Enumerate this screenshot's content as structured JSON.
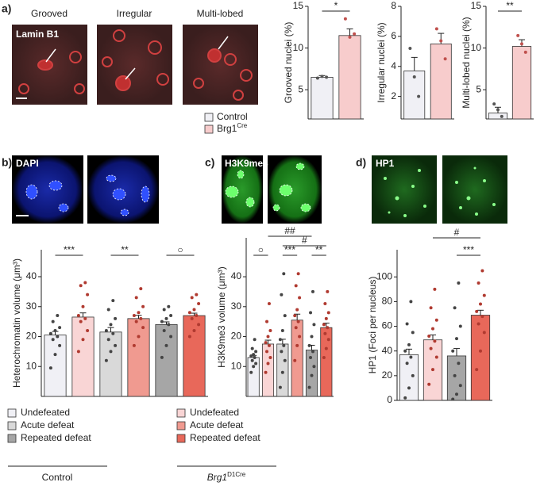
{
  "panels": [
    "a)",
    "b)",
    "c)",
    "d)"
  ],
  "images": {
    "a": {
      "stain": "Lamin B1",
      "labels": [
        "Grooved",
        "Irregular",
        "Multi-lobed"
      ]
    },
    "b": {
      "stain": "DAPI"
    },
    "c": {
      "stain": "H3K9me3"
    },
    "d": {
      "stain": "HP1"
    }
  },
  "legend_top": [
    {
      "label": "Control",
      "color": "#f0f0f5"
    },
    {
      "label": "Brg1",
      "sup": "Cre",
      "color": "#f7cccc"
    }
  ],
  "legend_bottom": [
    {
      "name": "Control",
      "items": [
        {
          "label": "Undefeated",
          "color": "#f0f0f5"
        },
        {
          "label": "Acute defeat",
          "color": "#d9d9d9"
        },
        {
          "label": "Repeated defeat",
          "color": "#a6a6a6"
        }
      ]
    },
    {
      "name": "Brg1",
      "sup": "D1Cre",
      "items": [
        {
          "label": "Undefeated",
          "color": "#f9d5d5"
        },
        {
          "label": "Acute defeat",
          "color": "#f09a90"
        },
        {
          "label": "Repeated defeat",
          "color": "#e8685a"
        }
      ]
    }
  ],
  "chart_data": [
    {
      "type": "bar",
      "ylabel": "Grooved nuclei (%)",
      "ylim": [
        1.5,
        15
      ],
      "yticks": [
        5,
        10,
        15
      ],
      "values": [
        6.5,
        11.5
      ],
      "errors": [
        0.2,
        0.8
      ],
      "colors": [
        "#f0f0f5",
        "#f7cccc"
      ],
      "point_colors": [
        "#555555",
        "#c0504d"
      ],
      "points": [
        [
          6.4,
          6.6,
          6.5
        ],
        [
          13.5,
          11.3,
          11.7
        ]
      ],
      "annotations": [
        "*"
      ]
    },
    {
      "type": "bar",
      "ylabel": "Irregular nuclei (%)",
      "ylim": [
        0.5,
        8
      ],
      "yticks": [
        2,
        4,
        6,
        8
      ],
      "values": [
        3.7,
        5.5
      ],
      "errors": [
        0.9,
        0.7
      ],
      "colors": [
        "#f0f0f5",
        "#f7cccc"
      ],
      "point_colors": [
        "#555555",
        "#c0504d"
      ],
      "points": [
        [
          5.2,
          3.3,
          2.0
        ],
        [
          6.5,
          5.7,
          4.5
        ]
      ],
      "annotations": []
    },
    {
      "type": "bar",
      "ylabel": "Multi-lobed nuclei (%)",
      "ylim": [
        1.5,
        15
      ],
      "yticks": [
        5,
        10,
        15
      ],
      "values": [
        2.2,
        10.2
      ],
      "errors": [
        0.7,
        0.8
      ],
      "colors": [
        "#f0f0f5",
        "#f7cccc"
      ],
      "point_colors": [
        "#555555",
        "#c0504d"
      ],
      "points": [
        [
          3.3,
          2.6,
          1.8
        ],
        [
          11.5,
          10.5,
          9.5
        ]
      ],
      "annotations": [
        "**"
      ]
    },
    {
      "type": "bar",
      "ylabel": "Heterochromatin volume (μm³)",
      "ylim": [
        0,
        49
      ],
      "yticks": [
        10,
        20,
        30,
        40
      ],
      "values": [
        20.5,
        26.5,
        21.5,
        26,
        24,
        27
      ],
      "errors": [
        1.2,
        1.4,
        1.5,
        1.1,
        0.9,
        0.8
      ],
      "colors": [
        "#f0f0f5",
        "#f9d5d5",
        "#d9d9d9",
        "#f09a90",
        "#a6a6a6",
        "#e8685a"
      ],
      "point_colors": [
        "#444444",
        "#b03a30",
        "#444444",
        "#b03a30",
        "#444444",
        "#b03a30"
      ],
      "points": [
        [
          9.5,
          14,
          17,
          19,
          20,
          21,
          22,
          23,
          25,
          27
        ],
        [
          15,
          19,
          22,
          25,
          26,
          27,
          30,
          34,
          37,
          38
        ],
        [
          12,
          15,
          17,
          19,
          21,
          22,
          24,
          26,
          29,
          32
        ],
        [
          17,
          20,
          23,
          25,
          26,
          27,
          28,
          30,
          33,
          36
        ],
        [
          13,
          17,
          20,
          22,
          24,
          25,
          26,
          27,
          29,
          30
        ],
        [
          20,
          22,
          24,
          26,
          27,
          28,
          29,
          31,
          33,
          34
        ]
      ],
      "annotations": [
        "***",
        "**",
        "○"
      ]
    },
    {
      "type": "bar",
      "ylabel": "H3K9me3 volume (μm³)",
      "ylim": [
        0,
        53
      ],
      "yticks": [
        10,
        20,
        30,
        40
      ],
      "values": [
        13,
        17.5,
        17.5,
        25.5,
        15.5,
        23
      ],
      "errors": [
        0.7,
        1.3,
        1.6,
        2.0,
        1.6,
        1.5
      ],
      "colors": [
        "#f0f0f5",
        "#f9d5d5",
        "#d9d9d9",
        "#f09a90",
        "#a6a6a6",
        "#e8685a"
      ],
      "point_colors": [
        "#444444",
        "#b03a30",
        "#444444",
        "#b03a30",
        "#444444",
        "#b03a30"
      ],
      "points": [
        [
          8,
          10,
          11,
          12,
          13,
          13.5,
          14,
          15,
          16,
          19
        ],
        [
          8,
          11,
          13,
          15,
          17,
          18,
          20,
          22,
          25,
          31
        ],
        [
          3,
          8,
          12,
          15,
          17,
          19,
          22,
          27,
          34,
          41
        ],
        [
          12,
          17,
          20,
          23,
          25,
          27,
          29,
          33,
          37,
          41
        ],
        [
          3,
          7,
          10,
          13,
          15,
          17,
          20,
          24,
          28,
          35
        ],
        [
          13,
          16,
          19,
          21,
          23,
          24,
          26,
          28,
          31,
          35
        ]
      ],
      "annotations": [
        "○",
        "##",
        "#",
        "***",
        "**"
      ]
    },
    {
      "type": "bar",
      "ylabel": "HP1 (Foci per nucleus)",
      "ylim": [
        0,
        122
      ],
      "yticks": [
        0,
        20,
        40,
        60,
        80,
        100
      ],
      "values": [
        37,
        49,
        36,
        69
      ],
      "errors": [
        4.5,
        4,
        6,
        4
      ],
      "colors": [
        "#f0f0f5",
        "#f9d5d5",
        "#a6a6a6",
        "#e8685a"
      ],
      "point_colors": [
        "#444444",
        "#b03a30",
        "#444444",
        "#b03a30"
      ],
      "points": [
        [
          2,
          10,
          20,
          30,
          35,
          40,
          45,
          55,
          62,
          80
        ],
        [
          13,
          25,
          35,
          42,
          48,
          52,
          58,
          65,
          75,
          90
        ],
        [
          1,
          5,
          12,
          20,
          30,
          40,
          50,
          60,
          75,
          95
        ],
        [
          25,
          40,
          55,
          62,
          68,
          72,
          78,
          85,
          95,
          105
        ]
      ],
      "annotations": [
        "#",
        "***"
      ]
    }
  ]
}
